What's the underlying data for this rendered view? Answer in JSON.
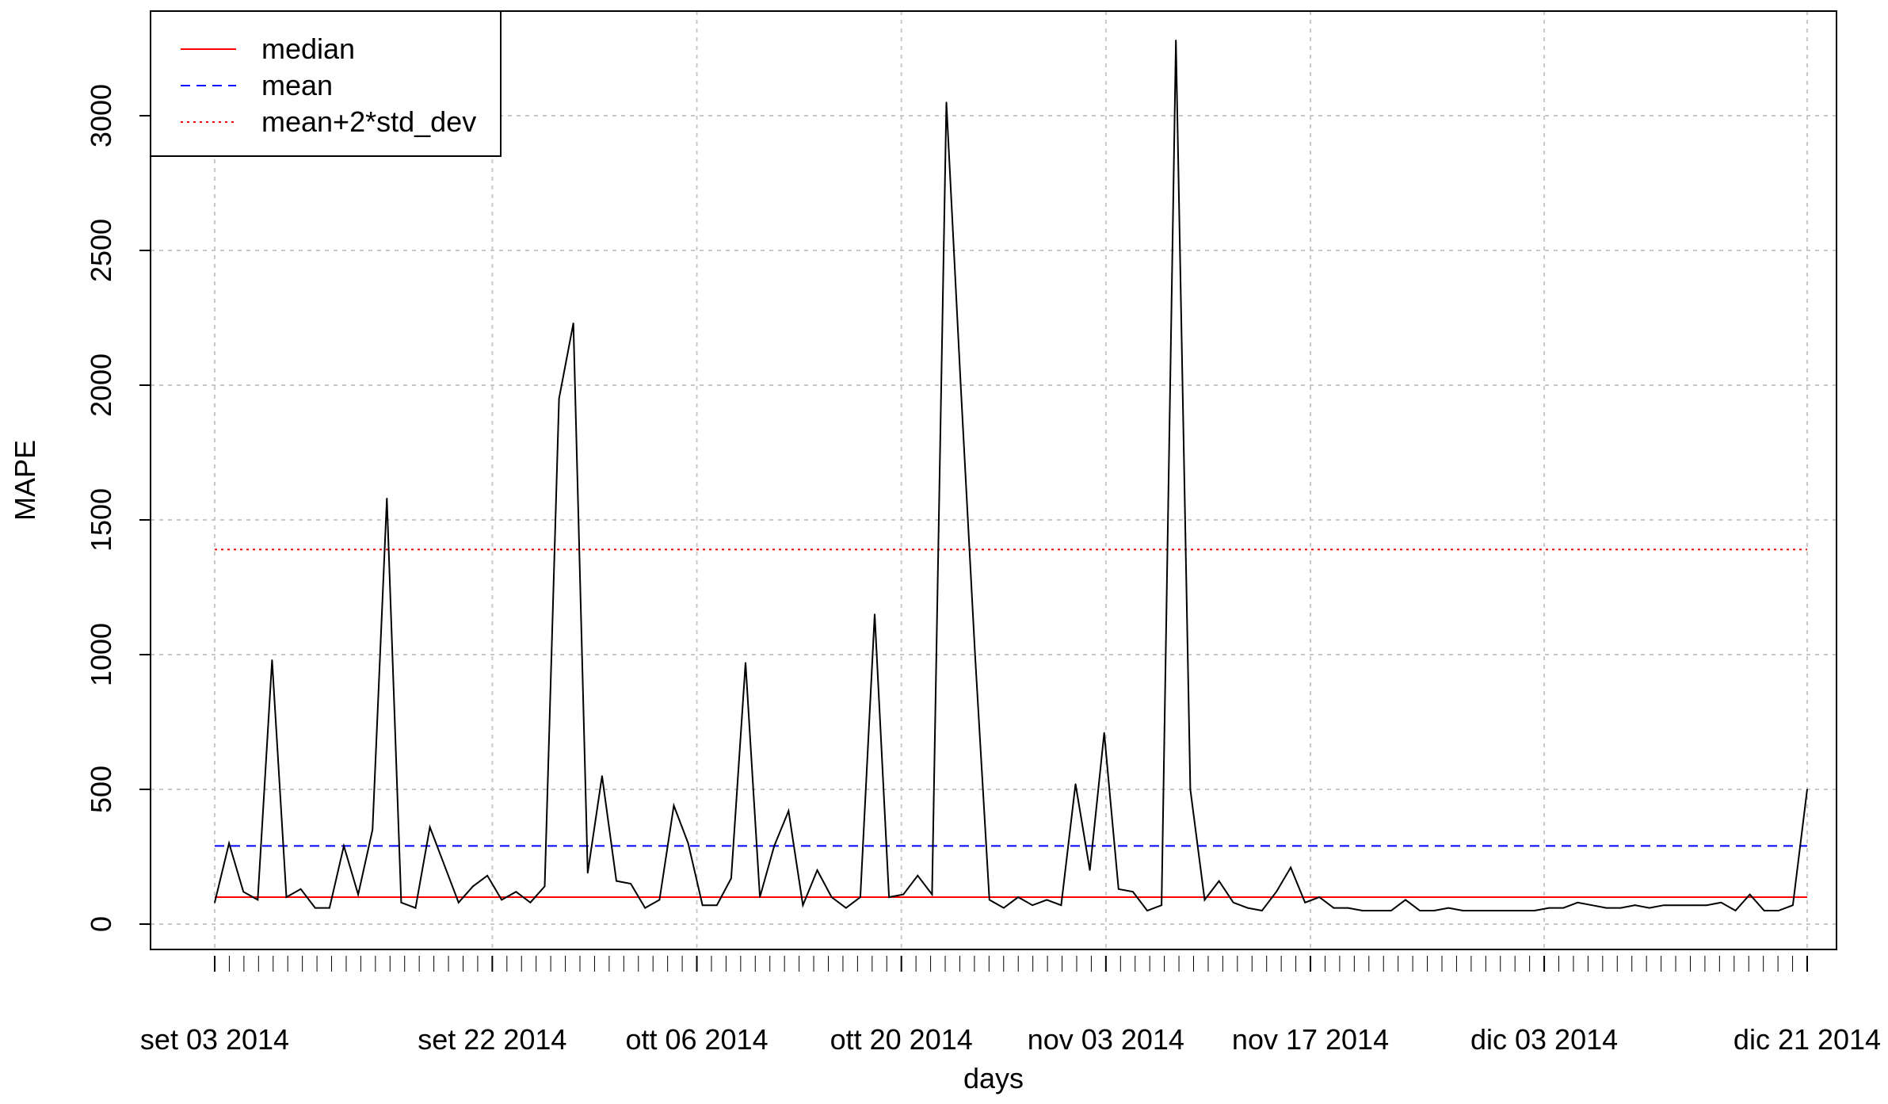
{
  "chart_data": {
    "type": "line",
    "title": "",
    "xlabel": "days",
    "ylabel": "MAPE",
    "ylim": [
      0,
      3300
    ],
    "y_ticks": [
      0,
      500,
      1000,
      1500,
      2000,
      2500,
      3000
    ],
    "y_tick_labels": [
      "0",
      "500",
      "1000",
      "1500",
      "2000",
      "2500",
      "3000"
    ],
    "x_start": "2014-09-03",
    "x_end": "2014-12-21",
    "x_tick_labels": [
      {
        "date": "2014-09-03",
        "label": "set 03 2014"
      },
      {
        "date": "2014-09-22",
        "label": "set 22 2014"
      },
      {
        "date": "2014-10-06",
        "label": "ott 06 2014"
      },
      {
        "date": "2014-10-20",
        "label": "ott 20 2014"
      },
      {
        "date": "2014-11-03",
        "label": "nov 03 2014"
      },
      {
        "date": "2014-11-17",
        "label": "nov 17 2014"
      },
      {
        "date": "2014-12-03",
        "label": "dic 03 2014"
      },
      {
        "date": "2014-12-21",
        "label": "dic 21 2014"
      }
    ],
    "grid": true,
    "legend_position": "top-left",
    "series": [
      {
        "values": [
          80,
          300,
          120,
          90,
          980,
          100,
          130,
          60,
          60,
          290,
          110,
          350,
          1580,
          80,
          60,
          360,
          220,
          80,
          140,
          180,
          90,
          120,
          80,
          140,
          1950,
          2230,
          190,
          550,
          160,
          150,
          60,
          90,
          440,
          300,
          70,
          70,
          170,
          970,
          100,
          290,
          420,
          70,
          200,
          100,
          60,
          100,
          1150,
          100,
          110,
          180,
          110,
          3050,
          2000,
          1000,
          90,
          60,
          100,
          70,
          90,
          70,
          520,
          200,
          710,
          130,
          120,
          50,
          70,
          3280,
          500,
          90,
          160,
          80,
          60,
          50,
          120,
          210,
          80,
          100,
          60,
          60,
          50,
          50,
          50,
          90,
          50,
          50,
          60,
          50,
          50,
          50,
          50,
          50,
          50,
          60,
          60,
          80,
          70,
          60,
          60,
          70,
          60,
          70,
          70,
          70,
          70,
          80,
          50,
          110,
          50,
          50,
          70,
          500
        ],
        "color": "#000000",
        "style": "solid"
      },
      {
        "name": "median",
        "constant": 100,
        "color": "#ff0000",
        "style": "solid"
      },
      {
        "name": "mean",
        "constant": 290,
        "color": "#0000ff",
        "style": "dashed"
      },
      {
        "name": "mean+2*std_dev",
        "constant": 1390,
        "color": "#ff0000",
        "style": "dotted"
      }
    ]
  }
}
